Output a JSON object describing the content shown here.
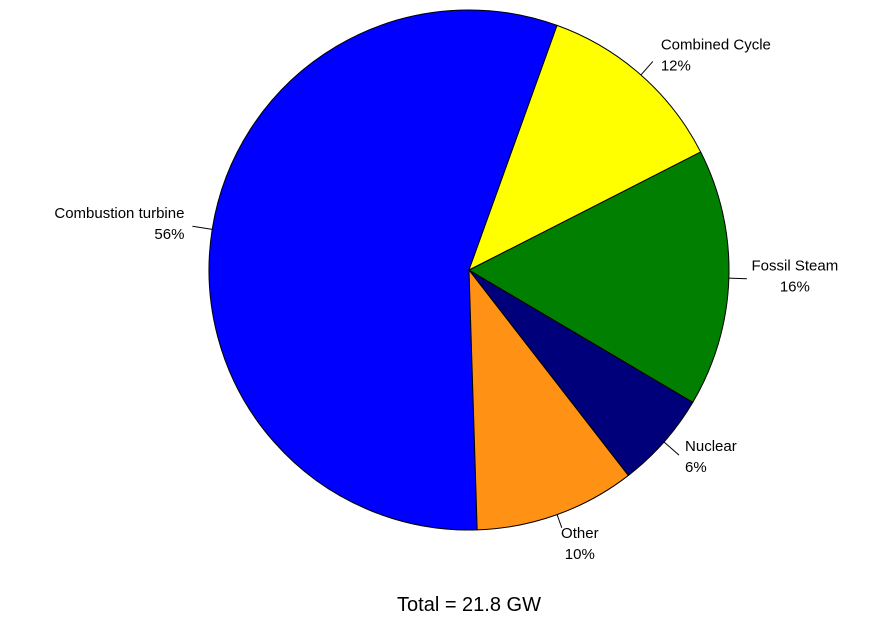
{
  "chart_data": {
    "type": "pie",
    "title": "",
    "footer": "Total = 21.8 GW",
    "start_angle_deg": 0,
    "direction": "counterclockwise",
    "slices": [
      {
        "name": "Combustion turbine",
        "value": 56,
        "percent_label": "56%",
        "color": "#0000ff"
      },
      {
        "name": "Other",
        "value": 10,
        "percent_label": "10%",
        "color": "#ff9214"
      },
      {
        "name": "Nuclear",
        "value": 6,
        "percent_label": "6%",
        "color": "#00007a"
      },
      {
        "name": "Fossil Steam",
        "value": 16,
        "percent_label": "16%",
        "color": "#007f00"
      },
      {
        "name": "Combined Cycle",
        "value": 12,
        "percent_label": "12%",
        "color": "#ffff00"
      }
    ]
  }
}
